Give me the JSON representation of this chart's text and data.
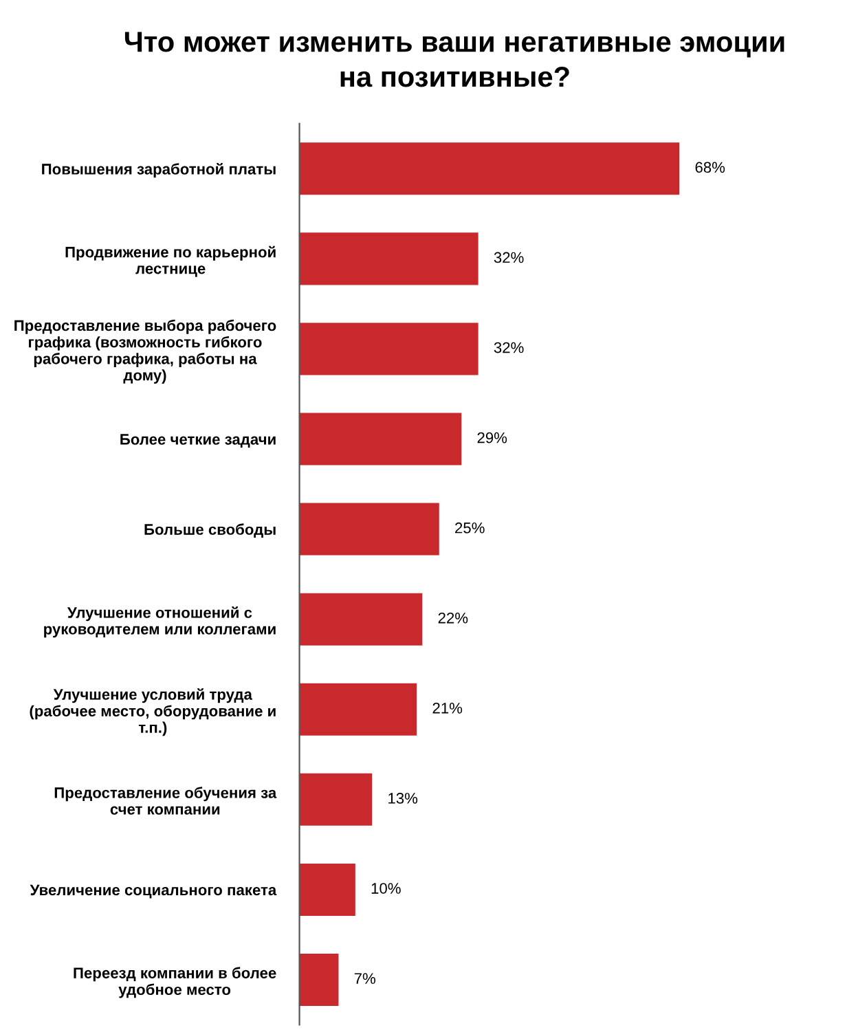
{
  "chart_data": {
    "type": "bar",
    "orientation": "horizontal",
    "title": "Что может изменить ваши негативные эмоции на позитивные?",
    "categories": [
      "Повышения заработной платы",
      "Продвижение по карьерной лестнице",
      "Предоставление выбора рабочего графика (возможность гибкого рабочего графика, работы на дому)",
      "Более четкие задачи",
      "Больше свободы",
      "Улучшение отношений с руководителем или коллегами",
      "Улучшение условий труда (рабочее место, оборудование и т.п.)",
      "Предоставление обучения за счет компании",
      "Увеличение социального пакета",
      "Переезд компании в более удобное место"
    ],
    "values": [
      68,
      32,
      32,
      29,
      25,
      22,
      21,
      13,
      10,
      7
    ],
    "value_labels": [
      "68%",
      "32%",
      "32%",
      "29%",
      "25%",
      "22%",
      "21%",
      "13%",
      "10%",
      "7%"
    ],
    "color": "#c9282d",
    "tick_labels": "y",
    "grid": false,
    "legend": false
  }
}
